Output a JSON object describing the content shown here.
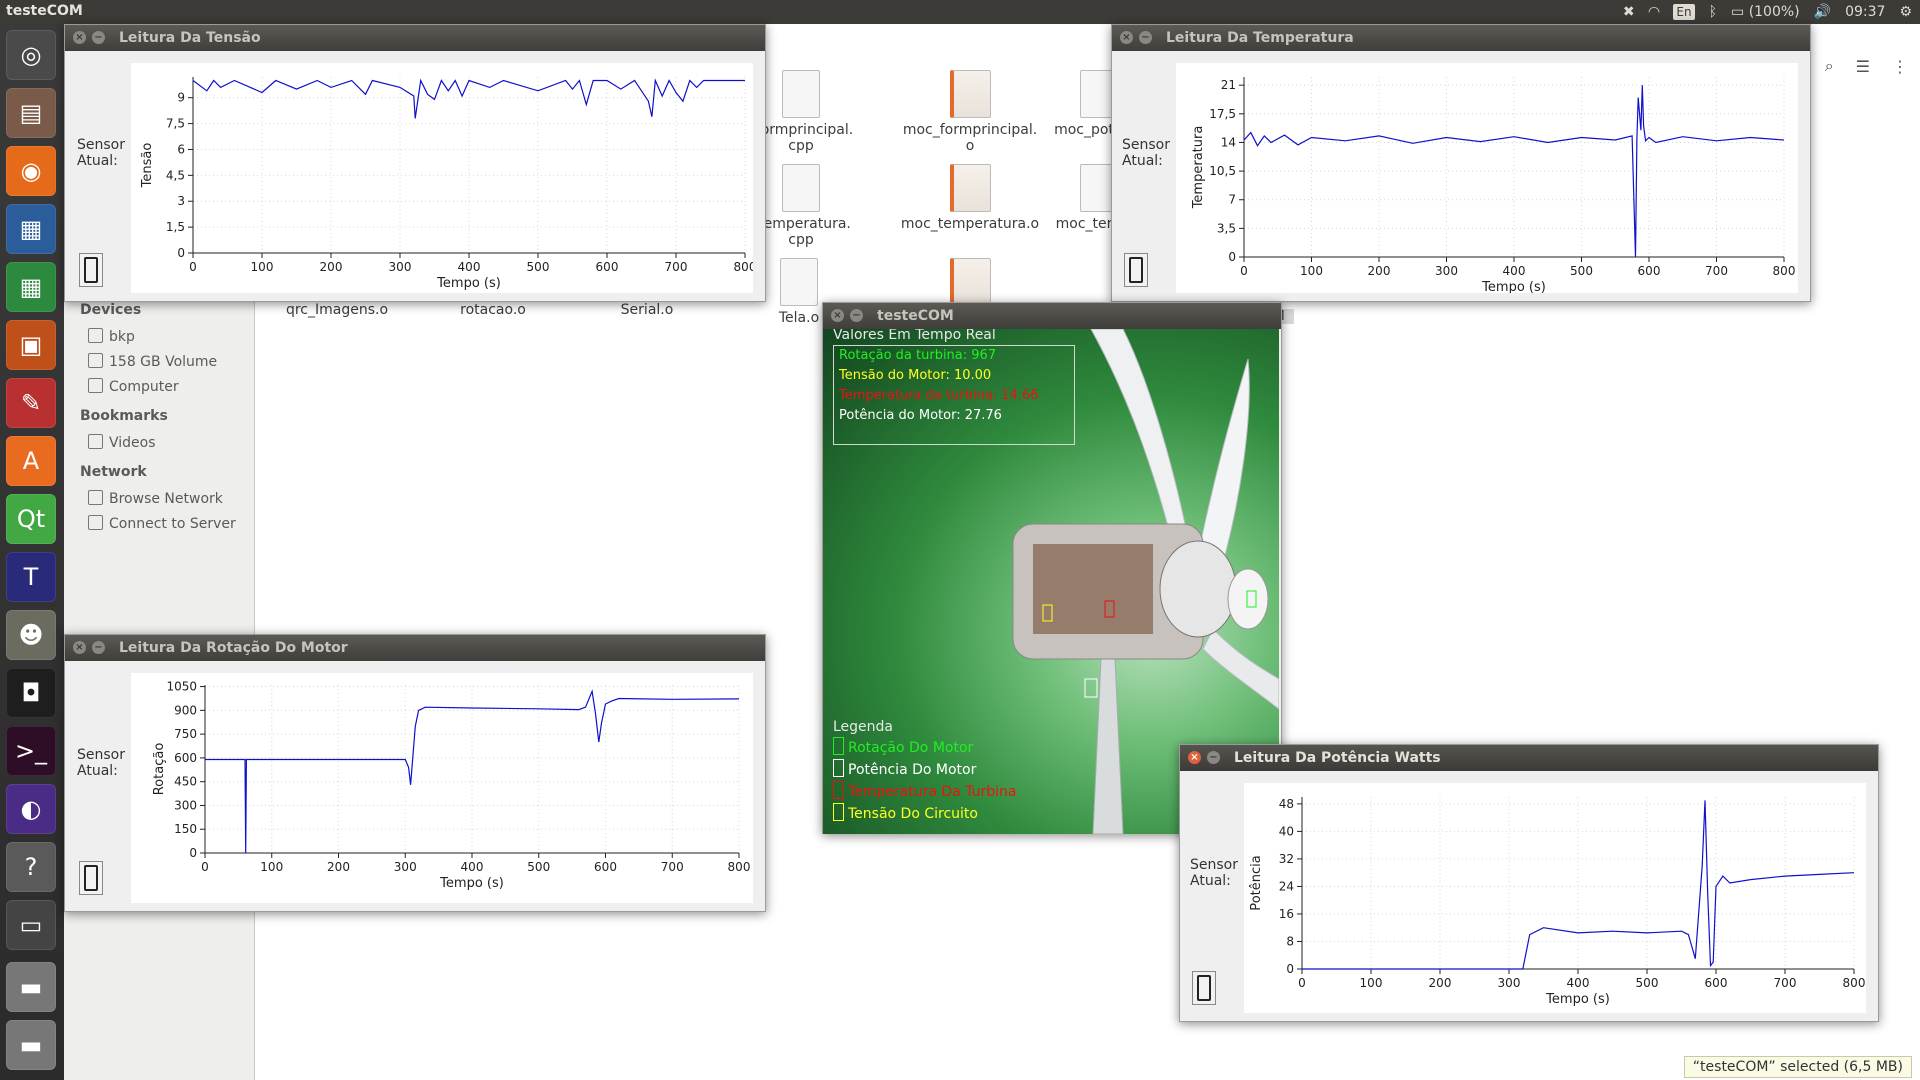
{
  "panel": {
    "app_name": "testeCOM",
    "lang": "En",
    "battery": "(100%)",
    "time": "09:37"
  },
  "launcher": [
    "ubuntu-dash-icon",
    "files-icon",
    "firefox-icon",
    "writer-icon",
    "calc-icon",
    "impress-icon",
    "settings-icon",
    "software-center-icon",
    "qt-creator-icon",
    "texmaker-icon",
    "gimp-icon",
    "terminal-dark-icon",
    "terminal-icon",
    "eclipse-icon",
    "help-icon",
    "window-icon",
    "drive-icon",
    "drive-icon-2"
  ],
  "nautilus": {
    "sidebar": {
      "devices_header": "Devices",
      "devices": [
        "bkp",
        "158 GB Volume",
        "Computer"
      ],
      "bookmarks_header": "Bookmarks",
      "bookmarks": [
        "Videos"
      ],
      "network_header": "Network",
      "network": [
        "Browse Network",
        "Connect to Server"
      ]
    },
    "files": {
      "qrc": "qrc_Imagens.o",
      "rotacao": "rotacao.o",
      "serial": "Serial.o",
      "tela": "Tela.o",
      "fp_cpp_1": "_formprincipal.",
      "fp_cpp_2": "cpp",
      "moc_fp_1": "moc_formprincipal.",
      "moc_fp_2": "o",
      "moc_pot": "moc_pot",
      "temp_cpp_1": "_temperatura.",
      "temp_cpp_2": "cpp",
      "moc_temp": "moc_temperatura.o",
      "moc_te": "moc_ter",
      "om": "OM"
    },
    "status": "“testeCOM” selected  (6,5 MB)"
  },
  "sensor_label_1": "Sensor",
  "sensor_label_2": "Atual:",
  "windows": {
    "tensao": {
      "title": "Leitura Da Tensão",
      "ylabel": "Tensão",
      "xlabel": "Tempo (s)"
    },
    "temperatura": {
      "title": "Leitura Da Temperatura",
      "ylabel": "Temperatura",
      "xlabel": "Tempo (s)"
    },
    "rotacao": {
      "title": "Leitura Da Rotação Do Motor",
      "ylabel": "Rotação",
      "xlabel": "Tempo (s)"
    },
    "potencia": {
      "title": "Leitura Da Potência Watts",
      "ylabel": "Potência",
      "xlabel": "Tempo (s)"
    },
    "turbina": {
      "title": "testeCOM",
      "realtime_title": "Valores Em Tempo Real",
      "rotacao": "Rotação da turbina: 967",
      "tensao": "Tensão do Motor: 10.00",
      "temperatura": "Temperatura da turbina: 14.66",
      "potencia": "Potência do Motor: 27.76",
      "legend_title": "Legenda",
      "legend": [
        "Rotação Do Motor",
        "Potência Do Motor",
        "Temperatura Da Turbina",
        "Tensão Do Circuito"
      ],
      "colors": {
        "green": "#22ee22",
        "white": "#ffffff",
        "red": "#ee1111",
        "yellow": "#ffff22"
      }
    }
  },
  "chart_data": [
    {
      "id": "tensao",
      "type": "line",
      "title": "",
      "xlabel": "Tempo (s)",
      "ylabel": "Tensão",
      "xlim": [
        0,
        800
      ],
      "ylim": [
        0,
        10.2
      ],
      "xticks": [
        "0",
        "100",
        "200",
        "300",
        "400",
        "500",
        "600",
        "700",
        "800"
      ],
      "yticks": [
        "0",
        "1,5",
        "3",
        "4,5",
        "6",
        "7,5",
        "9"
      ],
      "ytick_values": [
        0,
        1.5,
        3,
        4.5,
        6,
        7.5,
        9
      ],
      "series": [
        {
          "color": "#1010cc",
          "x": [
            0,
            20,
            30,
            40,
            60,
            100,
            120,
            150,
            180,
            200,
            230,
            250,
            260,
            300,
            320,
            322,
            330,
            340,
            350,
            360,
            370,
            380,
            390,
            400,
            430,
            450,
            500,
            540,
            550,
            560,
            570,
            580,
            600,
            620,
            640,
            660,
            665,
            670,
            680,
            690,
            700,
            710,
            720,
            730,
            740,
            760,
            800
          ],
          "y": [
            10,
            9.4,
            10,
            9.6,
            10,
            9.3,
            10,
            9.5,
            10,
            9.6,
            10,
            9.2,
            10,
            9.6,
            9.1,
            7.8,
            10,
            9.2,
            8.9,
            10,
            9.4,
            10,
            9.1,
            10,
            9.6,
            10,
            9.4,
            10,
            9.5,
            10,
            8.6,
            10,
            10,
            9.5,
            10,
            8.8,
            7.9,
            10,
            9.1,
            10,
            9.3,
            8.8,
            10,
            9.6,
            10,
            10,
            10
          ]
        }
      ]
    },
    {
      "id": "temperatura",
      "type": "line",
      "title": "",
      "xlabel": "Tempo (s)",
      "ylabel": "Temperatura",
      "xlim": [
        0,
        800
      ],
      "ylim": [
        0,
        22
      ],
      "xticks": [
        "0",
        "100",
        "200",
        "300",
        "400",
        "500",
        "600",
        "700",
        "800"
      ],
      "yticks": [
        "0",
        "3,5",
        "7",
        "10,5",
        "14",
        "17,5",
        "21"
      ],
      "ytick_values": [
        0,
        3.5,
        7,
        10.5,
        14,
        17.5,
        21
      ],
      "series": [
        {
          "color": "#1010cc",
          "x": [
            0,
            10,
            20,
            30,
            40,
            60,
            80,
            100,
            150,
            200,
            250,
            300,
            350,
            400,
            450,
            500,
            550,
            575,
            580,
            582,
            584,
            588,
            590,
            592,
            595,
            600,
            610,
            650,
            700,
            750,
            800
          ],
          "y": [
            14.3,
            15.2,
            13.6,
            14.8,
            14.0,
            14.9,
            13.7,
            14.6,
            14.2,
            14.8,
            13.9,
            14.6,
            14.1,
            14.7,
            14.0,
            14.6,
            14.3,
            14.8,
            0,
            14.5,
            19.5,
            15.5,
            21,
            16,
            14.2,
            14.6,
            14.0,
            14.7,
            14.2,
            14.6,
            14.3
          ]
        }
      ]
    },
    {
      "id": "rotacao",
      "type": "line",
      "title": "",
      "xlabel": "Tempo (s)",
      "ylabel": "Rotação",
      "xlim": [
        0,
        800
      ],
      "ylim": [
        0,
        1060
      ],
      "xticks": [
        "0",
        "100",
        "200",
        "300",
        "400",
        "500",
        "600",
        "700",
        "800"
      ],
      "yticks": [
        "0",
        "150",
        "300",
        "450",
        "600",
        "750",
        "900",
        "1050"
      ],
      "ytick_values": [
        0,
        150,
        300,
        450,
        600,
        750,
        900,
        1050
      ],
      "series": [
        {
          "color": "#1010cc",
          "x": [
            0,
            60,
            61,
            62,
            300,
            305,
            308,
            315,
            320,
            330,
            400,
            500,
            560,
            570,
            580,
            585,
            590,
            594,
            600,
            610,
            620,
            700,
            800
          ],
          "y": [
            590,
            590,
            0,
            590,
            590,
            540,
            430,
            800,
            900,
            920,
            915,
            910,
            905,
            920,
            1020,
            880,
            700,
            820,
            940,
            960,
            975,
            970,
            972
          ]
        }
      ]
    },
    {
      "id": "potencia",
      "type": "line",
      "title": "",
      "xlabel": "Tempo (s)",
      "ylabel": "Potência",
      "xlim": [
        0,
        800
      ],
      "ylim": [
        0,
        50
      ],
      "xticks": [
        "0",
        "100",
        "200",
        "300",
        "400",
        "500",
        "600",
        "700",
        "800"
      ],
      "yticks": [
        "0",
        "8",
        "16",
        "24",
        "32",
        "40",
        "48"
      ],
      "ytick_values": [
        0,
        8,
        16,
        24,
        32,
        40,
        48
      ],
      "series": [
        {
          "color": "#1010cc",
          "x": [
            0,
            320,
            330,
            350,
            400,
            450,
            500,
            550,
            560,
            570,
            580,
            584,
            588,
            592,
            596,
            600,
            610,
            620,
            650,
            700,
            750,
            800
          ],
          "y": [
            0,
            0,
            10,
            12,
            10.5,
            11,
            10.5,
            11,
            10,
            3,
            30,
            49,
            22,
            1,
            2,
            24,
            27,
            25,
            26,
            27,
            27.5,
            28
          ]
        }
      ]
    }
  ]
}
